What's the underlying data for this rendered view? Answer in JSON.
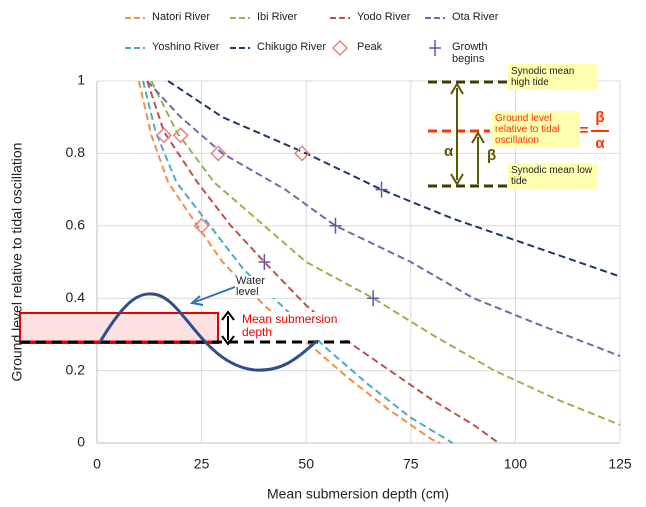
{
  "chart_data": {
    "type": "line",
    "xlabel": "Mean submersion depth (cm)",
    "ylabel": "Ground level relative to tidal oscillation",
    "xlim": [
      0,
      125
    ],
    "xticks": [
      0,
      25,
      50,
      75,
      100,
      125
    ],
    "ylim": [
      0,
      1
    ],
    "yticks": [
      0,
      0.2,
      0.4,
      0.6,
      0.8,
      1
    ],
    "grid": true,
    "series": [
      {
        "name": "Natori River",
        "color": "#f0924a",
        "x": [
          10,
          13,
          17,
          24,
          30,
          40,
          50,
          60,
          70,
          80,
          82
        ],
        "values": [
          1,
          0.85,
          0.72,
          0.6,
          0.5,
          0.38,
          0.28,
          0.18,
          0.09,
          0.01,
          0
        ]
      },
      {
        "name": "Ibi River",
        "color": "#92b64a",
        "x": [
          13,
          19,
          28,
          38,
          50,
          66,
          80,
          95,
          110,
          125
        ],
        "values": [
          1,
          0.86,
          0.72,
          0.62,
          0.5,
          0.4,
          0.3,
          0.2,
          0.12,
          0.05
        ]
      },
      {
        "name": "Yodo River",
        "color": "#c0504d",
        "x": [
          12,
          16,
          24,
          32,
          40,
          50,
          60,
          70,
          80,
          90,
          96
        ],
        "values": [
          1,
          0.86,
          0.72,
          0.6,
          0.5,
          0.38,
          0.28,
          0.2,
          0.12,
          0.05,
          0
        ]
      },
      {
        "name": "Ota River",
        "color": "#8064a2",
        "x": [
          12,
          20,
          30,
          45,
          57,
          75,
          90,
          105,
          125
        ],
        "values": [
          1,
          0.9,
          0.8,
          0.7,
          0.6,
          0.5,
          0.4,
          0.33,
          0.24
        ]
      },
      {
        "name": "Yoshino River",
        "color": "#4bacc6",
        "x": [
          11,
          14,
          19,
          27,
          35,
          45,
          55,
          65,
          75,
          85
        ],
        "values": [
          1,
          0.86,
          0.72,
          0.6,
          0.48,
          0.37,
          0.26,
          0.16,
          0.07,
          0
        ]
      },
      {
        "name": "Chikugo River",
        "color": "#1f3864",
        "x": [
          17,
          30,
          50,
          68,
          85,
          105,
          125
        ],
        "values": [
          1,
          0.9,
          0.8,
          0.7,
          0.62,
          0.54,
          0.46
        ]
      }
    ],
    "markers": [
      {
        "name": "Peak",
        "color": "#e8837f",
        "x": [
          16,
          20,
          29,
          49,
          25
        ],
        "values": [
          0.85,
          0.85,
          0.8,
          0.8,
          0.6
        ]
      },
      {
        "name": "Growth begins",
        "color": "#5b5ba8",
        "x": [
          40,
          57,
          66,
          68
        ],
        "values": [
          0.5,
          0.6,
          0.4,
          0.7
        ]
      }
    ],
    "annotations": {
      "water_level": "Water level",
      "mean_submersion_depth": "Mean submersion depth",
      "high_tide": "Synodic mean high tide",
      "ground_level": "Ground level relative to tidal oscillation",
      "low_tide": "Synodic mean low tide",
      "alpha": "α",
      "beta": "β",
      "equals": "=",
      "ratio_numerator": "β",
      "ratio_denominator": "α"
    }
  }
}
